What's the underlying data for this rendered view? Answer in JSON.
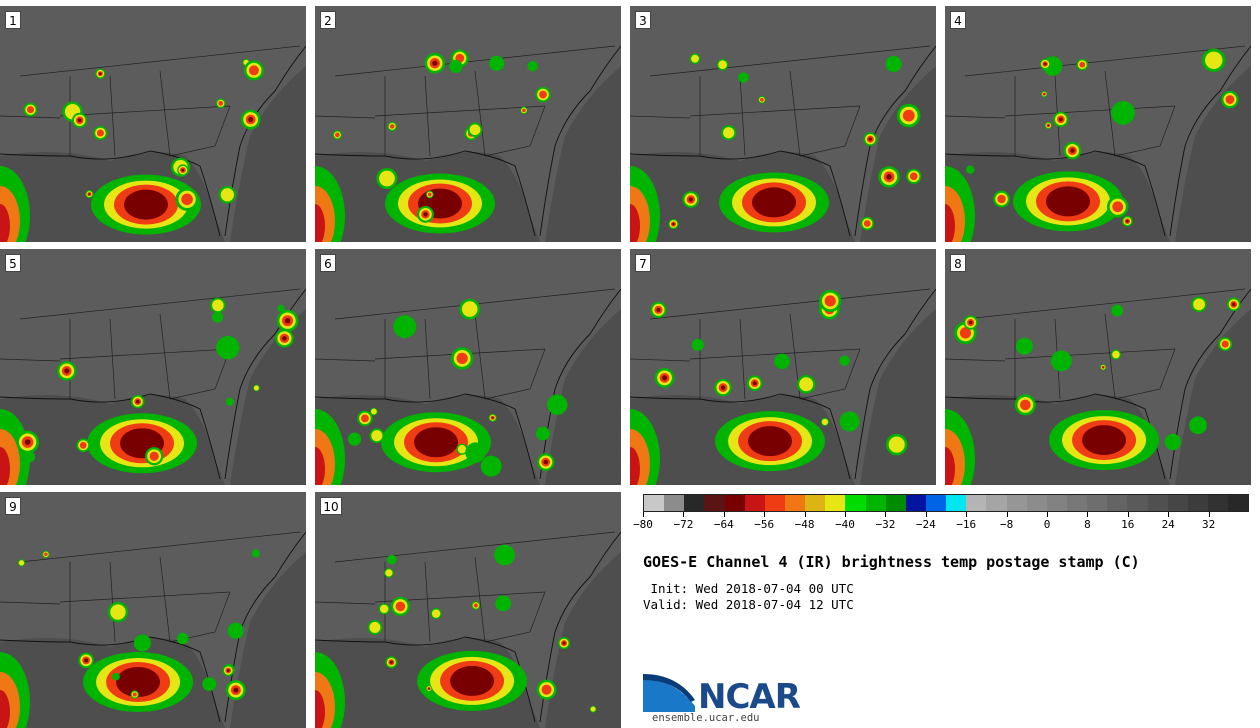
{
  "panels": [
    {
      "label": "1"
    },
    {
      "label": "2"
    },
    {
      "label": "3"
    },
    {
      "label": "4"
    },
    {
      "label": "5"
    },
    {
      "label": "6"
    },
    {
      "label": "7"
    },
    {
      "label": "8"
    },
    {
      "label": "9"
    },
    {
      "label": "10"
    }
  ],
  "colorbar": {
    "colors": [
      "#c8c8c8",
      "#8c8c8c",
      "#282828",
      "#5a1414",
      "#780000",
      "#c81414",
      "#f03c14",
      "#f07814",
      "#dcb414",
      "#e6e614",
      "#00dc00",
      "#00b400",
      "#008c00",
      "#0014a0",
      "#0064e6",
      "#00e6f0",
      "#b4b4b4",
      "#a5a5a5",
      "#969696",
      "#8c8c8c",
      "#828282",
      "#787878",
      "#6e6e6e",
      "#646464",
      "#5a5a5a",
      "#505050",
      "#464646",
      "#3c3c3c",
      "#323232",
      "#282828"
    ],
    "tick_labels": [
      "−80",
      "−72",
      "−64",
      "−56",
      "−48",
      "−40",
      "−32",
      "−24",
      "−16",
      "−8",
      "0",
      "8",
      "16",
      "24",
      "32"
    ]
  },
  "title": "GOES-E Channel 4 (IR) brightness temp postage stamp (C)",
  "init": " Init: Wed 2018-07-04 00 UTC",
  "valid": "Valid: Wed 2018-07-04 12 UTC",
  "logo": {
    "text": "NCAR",
    "url": "ensemble.ucar.edu",
    "color": "#1a4a8a"
  }
}
